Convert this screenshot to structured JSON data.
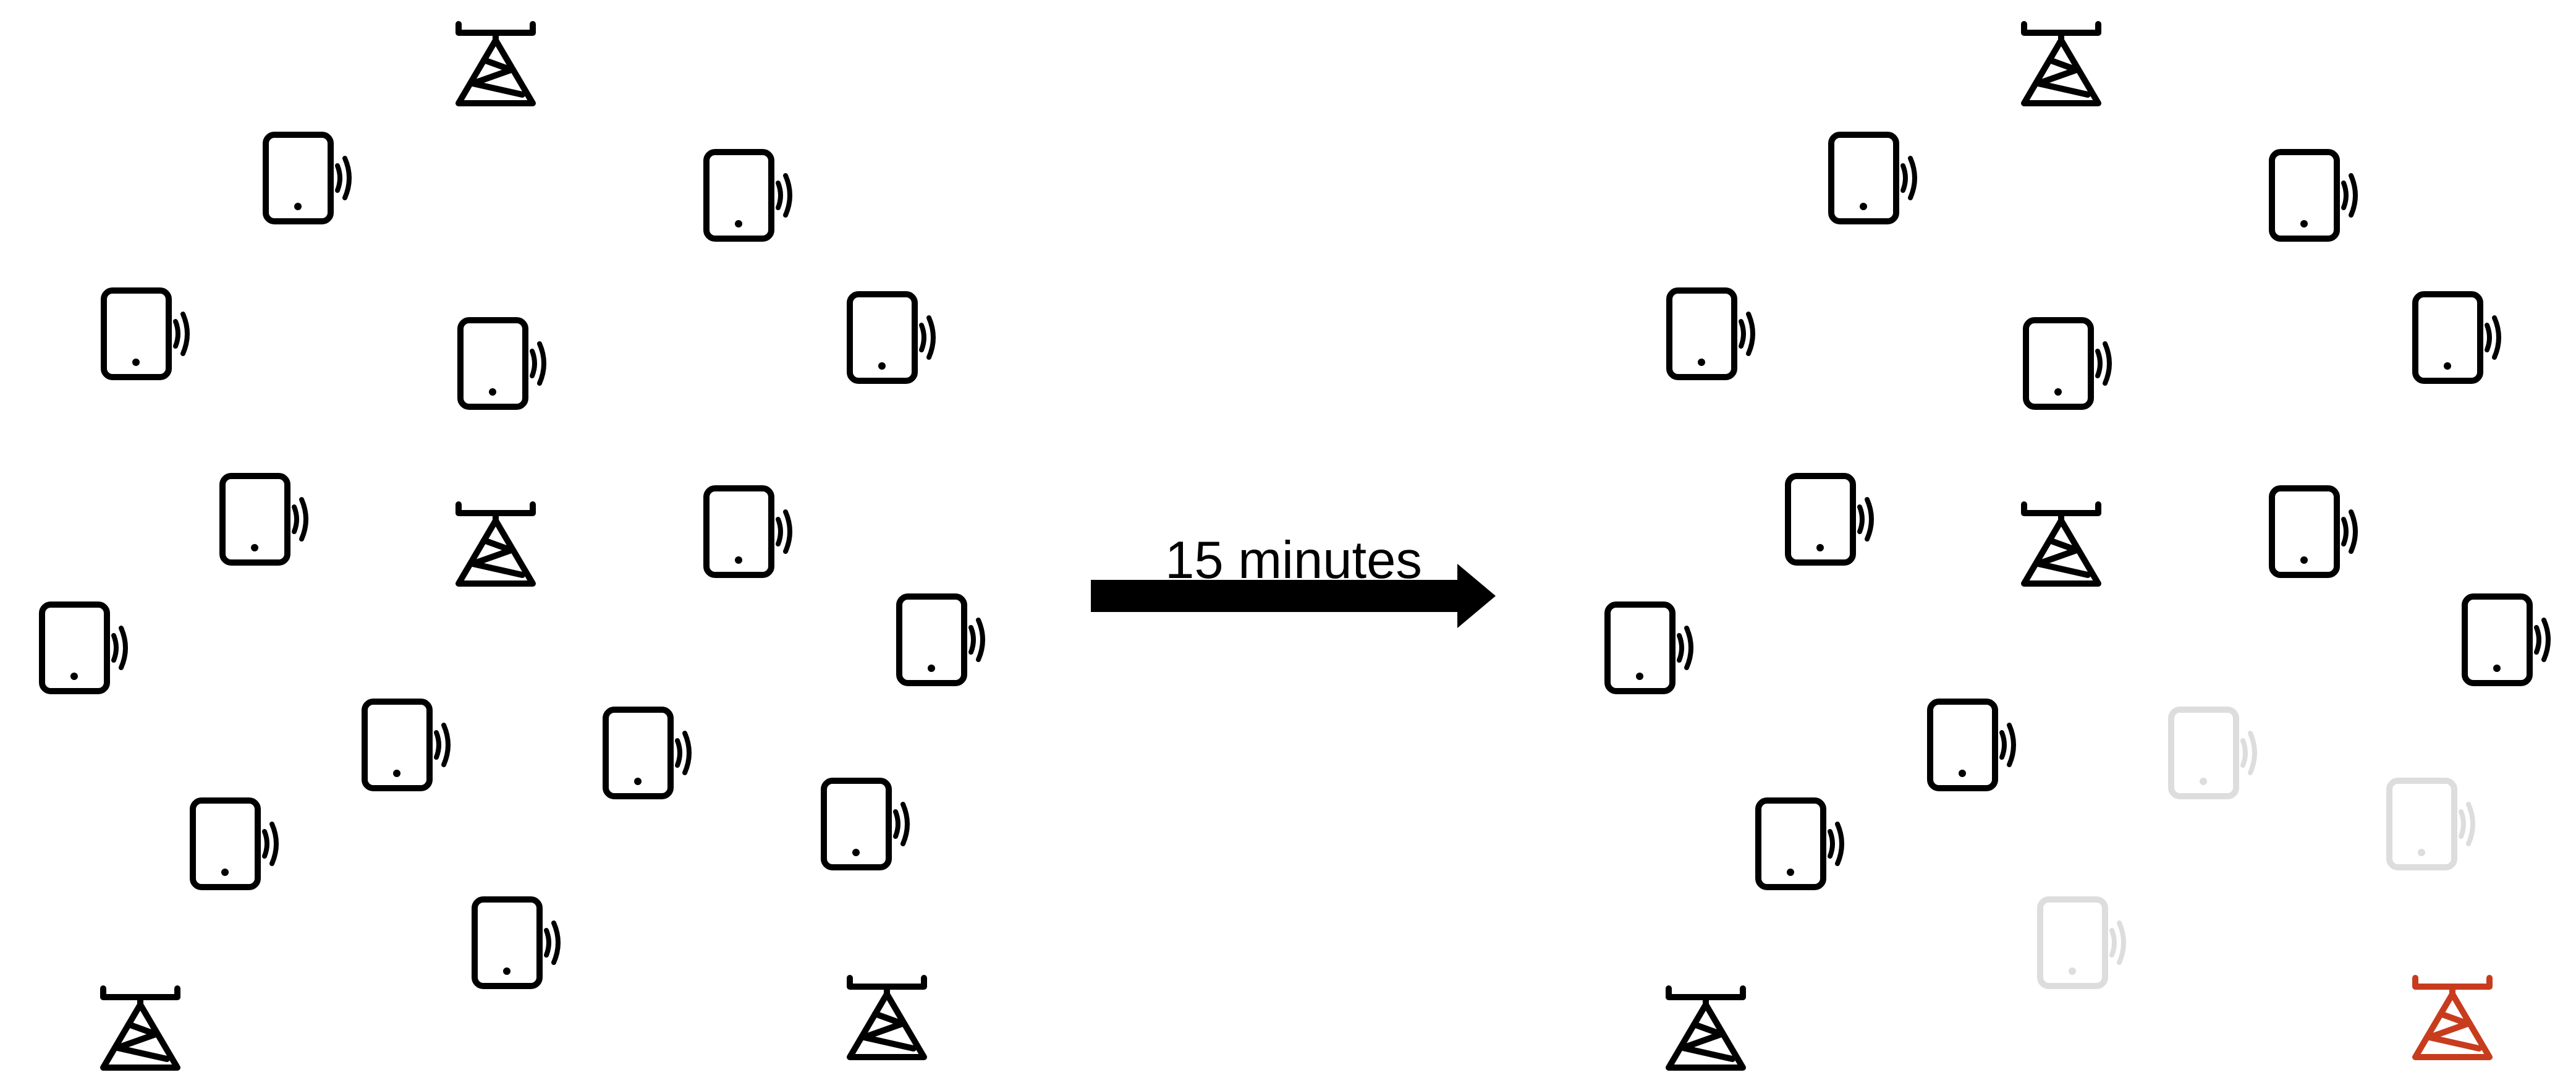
{
  "colors": {
    "active": "#000000",
    "inactive": "#dddddd",
    "failed": "#c83c1e",
    "arrow": "#000000"
  },
  "arrow_label": "15 minutes",
  "left_state": {
    "towers": [
      {
        "id": "t-top",
        "status": "active",
        "icon": "cell-tower-icon"
      },
      {
        "id": "t-center",
        "status": "active",
        "icon": "cell-tower-icon"
      },
      {
        "id": "t-bottom-left",
        "status": "active",
        "icon": "cell-tower-icon"
      },
      {
        "id": "t-bottom-right",
        "status": "active",
        "icon": "cell-tower-icon"
      }
    ],
    "devices": [
      {
        "id": "d1",
        "status": "active",
        "icon": "mobile-device-icon"
      },
      {
        "id": "d2",
        "status": "active",
        "icon": "mobile-device-icon"
      },
      {
        "id": "d3",
        "status": "active",
        "icon": "mobile-device-icon"
      },
      {
        "id": "d4",
        "status": "active",
        "icon": "mobile-device-icon"
      },
      {
        "id": "d5",
        "status": "active",
        "icon": "mobile-device-icon"
      },
      {
        "id": "d6",
        "status": "active",
        "icon": "mobile-device-icon"
      },
      {
        "id": "d7",
        "status": "active",
        "icon": "mobile-device-icon"
      },
      {
        "id": "d8",
        "status": "active",
        "icon": "mobile-device-icon"
      },
      {
        "id": "d9",
        "status": "active",
        "icon": "mobile-device-icon"
      },
      {
        "id": "d10",
        "status": "active",
        "icon": "mobile-device-icon"
      },
      {
        "id": "d11",
        "status": "active",
        "icon": "mobile-device-icon"
      },
      {
        "id": "d12",
        "status": "active",
        "icon": "mobile-device-icon"
      },
      {
        "id": "d13",
        "status": "active",
        "icon": "mobile-device-icon"
      },
      {
        "id": "d14",
        "status": "active",
        "icon": "mobile-device-icon"
      },
      {
        "id": "d15",
        "status": "active",
        "icon": "mobile-device-icon"
      }
    ]
  },
  "right_state": {
    "towers": [
      {
        "id": "t-top",
        "status": "active",
        "icon": "cell-tower-icon"
      },
      {
        "id": "t-center",
        "status": "active",
        "icon": "cell-tower-icon"
      },
      {
        "id": "t-bottom-left",
        "status": "active",
        "icon": "cell-tower-icon"
      },
      {
        "id": "t-bottom-right",
        "status": "failed",
        "icon": "cell-tower-icon"
      }
    ],
    "devices": [
      {
        "id": "d1",
        "status": "active",
        "icon": "mobile-device-icon"
      },
      {
        "id": "d2",
        "status": "active",
        "icon": "mobile-device-icon"
      },
      {
        "id": "d3",
        "status": "active",
        "icon": "mobile-device-icon"
      },
      {
        "id": "d4",
        "status": "active",
        "icon": "mobile-device-icon"
      },
      {
        "id": "d5",
        "status": "active",
        "icon": "mobile-device-icon"
      },
      {
        "id": "d6",
        "status": "active",
        "icon": "mobile-device-icon"
      },
      {
        "id": "d7",
        "status": "active",
        "icon": "mobile-device-icon"
      },
      {
        "id": "d8",
        "status": "active",
        "icon": "mobile-device-icon"
      },
      {
        "id": "d9",
        "status": "active",
        "icon": "mobile-device-icon"
      },
      {
        "id": "d10",
        "status": "active",
        "icon": "mobile-device-icon"
      },
      {
        "id": "d11",
        "status": "active",
        "icon": "mobile-device-icon"
      },
      {
        "id": "d12",
        "status": "inactive",
        "icon": "mobile-device-icon"
      },
      {
        "id": "d13",
        "status": "active",
        "icon": "mobile-device-icon"
      },
      {
        "id": "d14",
        "status": "inactive",
        "icon": "mobile-device-icon"
      },
      {
        "id": "d15",
        "status": "inactive",
        "icon": "mobile-device-icon"
      }
    ]
  }
}
